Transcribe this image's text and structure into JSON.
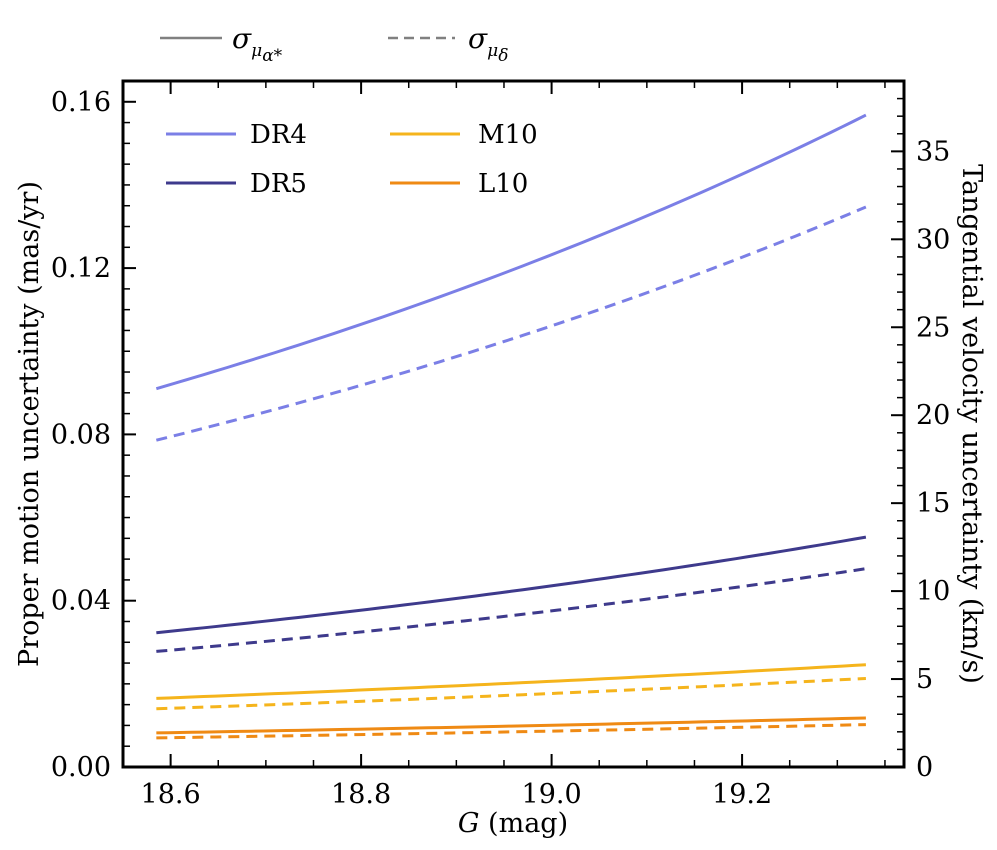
{
  "chart_data": {
    "type": "line",
    "xlabel_var": "G",
    "xlabel_unit": " (mag)",
    "ylabel": "Proper motion uncertainty (mas/yr)",
    "y2label": "Tangential velocity uncertainty (km/s)",
    "xlim": [
      18.55,
      19.37
    ],
    "ylim": [
      0.0,
      0.165
    ],
    "y2lim": [
      0,
      39
    ],
    "x_ticks": [
      18.6,
      18.8,
      19.0,
      19.2
    ],
    "x_tick_labels": [
      "18.6",
      "18.8",
      "19.0",
      "19.2"
    ],
    "y_ticks": [
      0.0,
      0.04,
      0.08,
      0.12,
      0.16
    ],
    "y_tick_labels": [
      "0.00",
      "0.04",
      "0.08",
      "0.12",
      "0.16"
    ],
    "y2_ticks": [
      0,
      5,
      10,
      15,
      20,
      25,
      30,
      35
    ],
    "y2_tick_labels": [
      "0",
      "5",
      "10",
      "15",
      "20",
      "25",
      "30",
      "35"
    ],
    "x": [
      18.585,
      19.33
    ],
    "series": [
      {
        "name": "DR4",
        "color": "#7b7fe6",
        "pmra": [
          0.091,
          0.1568
        ],
        "pmdec": [
          0.0786,
          0.1347
        ]
      },
      {
        "name": "DR5",
        "color": "#3e3a8c",
        "pmra": [
          0.0323,
          0.0553
        ],
        "pmdec": [
          0.0278,
          0.0477
        ]
      },
      {
        "name": "M10",
        "color": "#f5b41c",
        "pmra": [
          0.0165,
          0.0246
        ],
        "pmdec": [
          0.014,
          0.0213
        ]
      },
      {
        "name": "L10",
        "color": "#ef8a14",
        "pmra": [
          0.0082,
          0.0118
        ],
        "pmdec": [
          0.007,
          0.0102
        ]
      }
    ],
    "style_legend": [
      {
        "symbol": "σ",
        "sub": "μ",
        "subsub": "α*",
        "dash": "solid"
      },
      {
        "symbol": "σ",
        "sub": "μ",
        "subsub": "δ",
        "dash": "dashed"
      }
    ],
    "style_legend_color": "#808080"
  }
}
